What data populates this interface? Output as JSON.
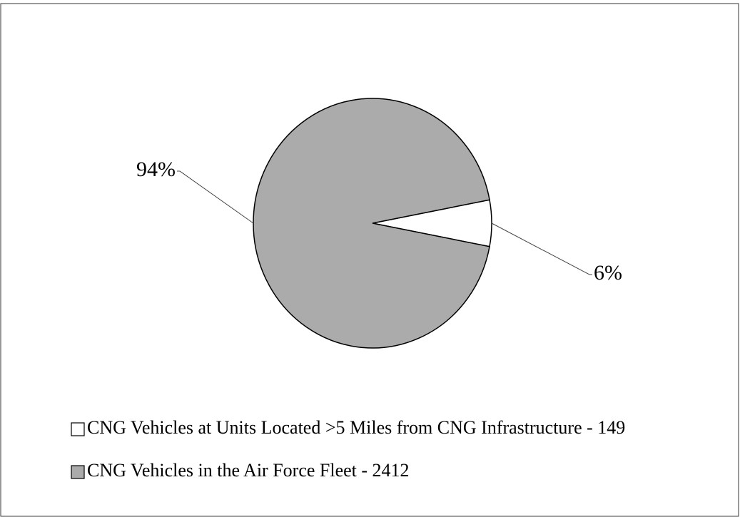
{
  "chart_data": {
    "type": "pie",
    "categories": [
      "CNG Vehicles at Units Located >5 Miles from CNG Infrastructure - 149",
      "CNG Vehicles in the Air Force Fleet - 2412"
    ],
    "values": [
      6,
      94
    ],
    "value_labels": [
      "6%",
      "94%"
    ],
    "colors": [
      "#ffffff",
      "#ababab"
    ]
  }
}
